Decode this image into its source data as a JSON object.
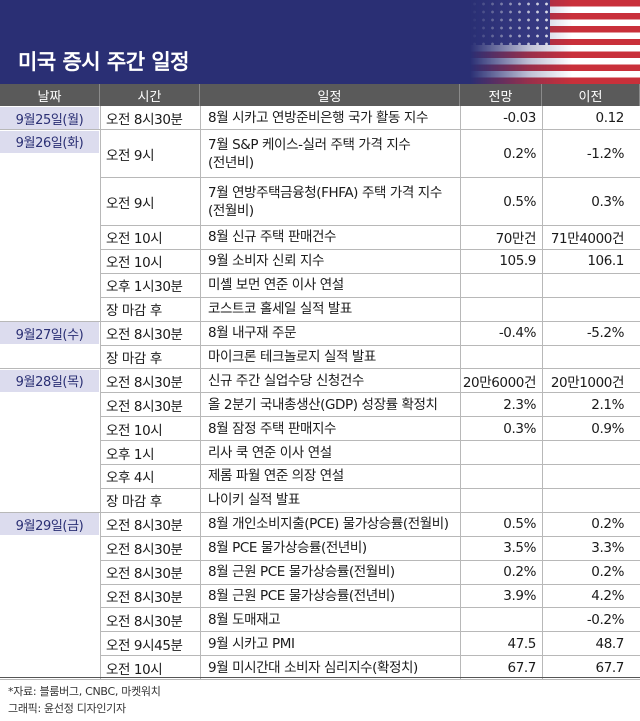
{
  "header": {
    "title": "미국 증시 주간 일정"
  },
  "columns": {
    "date": "날짜",
    "time": "시간",
    "event": "일정",
    "forecast": "전망",
    "previous": "이전"
  },
  "groups": [
    {
      "date": "9월25일(월)",
      "rows": [
        {
          "time": "오전 8시30분",
          "event": "8월 시카고 연방준비은행 국가 활동 지수",
          "forecast": "-0.03",
          "previous": "0.12"
        }
      ]
    },
    {
      "date": "9월26일(화)",
      "rows": [
        {
          "time": "오전 9시",
          "event": "7월 S&P 케이스-실러 주택 가격 지수",
          "event2": "(전년비)",
          "forecast": "0.2%",
          "previous": "-1.2%"
        },
        {
          "time": "오전 9시",
          "event": "7월 연방주택금융청(FHFA) 주택 가격 지수",
          "event2": "(전월비)",
          "forecast": "0.5%",
          "previous": "0.3%"
        },
        {
          "time": "오전 10시",
          "event": "8월 신규 주택 판매건수",
          "forecast": "70만건",
          "previous": "71만4000건"
        },
        {
          "time": "오전 10시",
          "event": "9월 소비자 신뢰 지수",
          "forecast": "105.9",
          "previous": "106.1"
        },
        {
          "time": "오후 1시30분",
          "event": "미셸 보먼 연준 이사 연설",
          "forecast": "",
          "previous": ""
        },
        {
          "time": "장 마감 후",
          "event": "코스트코 홀세일 실적 발표",
          "forecast": "",
          "previous": ""
        }
      ]
    },
    {
      "date": "9월27일(수)",
      "rows": [
        {
          "time": "오전 8시30분",
          "event": "8월 내구재 주문",
          "forecast": "-0.4%",
          "previous": "-5.2%"
        },
        {
          "time": "장 마감 후",
          "event": "마이크론 테크놀로지 실적 발표",
          "forecast": "",
          "previous": ""
        }
      ]
    },
    {
      "date": "9월28일(목)",
      "rows": [
        {
          "time": "오전 8시30분",
          "event": "신규 주간 실업수당 신청건수",
          "forecast": "20만6000건",
          "previous": "20만1000건"
        },
        {
          "time": "오전 8시30분",
          "event": "올 2분기 국내총생산(GDP) 성장률 확정치",
          "forecast": "2.3%",
          "previous": "2.1%"
        },
        {
          "time": "오전 10시",
          "event": "8월 잠정 주택 판매지수",
          "forecast": "0.3%",
          "previous": "0.9%"
        },
        {
          "time": "오후 1시",
          "event": "리사 쿡 연준 이사 연설",
          "forecast": "",
          "previous": ""
        },
        {
          "time": "오후 4시",
          "event": "제롬 파월 연준 의장 연설",
          "forecast": "",
          "previous": ""
        },
        {
          "time": "장 마감 후",
          "event": "나이키 실적 발표",
          "forecast": "",
          "previous": ""
        }
      ]
    },
    {
      "date": "9월29일(금)",
      "rows": [
        {
          "time": "오전 8시30분",
          "event": "8월 개인소비지출(PCE) 물가상승률(전월비)",
          "forecast": "0.5%",
          "previous": "0.2%"
        },
        {
          "time": "오전 8시30분",
          "event": "8월 PCE 물가상승률(전년비)",
          "forecast": "3.5%",
          "previous": "3.3%"
        },
        {
          "time": "오전 8시30분",
          "event": "8월 근원 PCE 물가상승률(전월비)",
          "forecast": "0.2%",
          "previous": "0.2%"
        },
        {
          "time": "오전 8시30분",
          "event": "8월 근원 PCE 물가상승률(전년비)",
          "forecast": "3.9%",
          "previous": "4.2%"
        },
        {
          "time": "오전 8시30분",
          "event": "8월 도매재고",
          "forecast": "",
          "previous": "-0.2%"
        },
        {
          "time": "오전 9시45분",
          "event": "9월 시카고 PMI",
          "forecast": "47.5",
          "previous": "48.7"
        },
        {
          "time": "오전 10시",
          "event": "9월 미시간대 소비자 심리지수(확정치)",
          "forecast": "67.7",
          "previous": "67.7"
        }
      ]
    }
  ],
  "footer": {
    "source": "*자료: 블룸버그, CNBC, 마켓워치",
    "credit": "그래픽: 윤선정 디자인기자"
  },
  "colors": {
    "header_bg": "#2a2f74",
    "column_header_bg": "#5a5a5a",
    "date_badge_bg": "#dcdcee",
    "date_text": "#2a2f74"
  }
}
